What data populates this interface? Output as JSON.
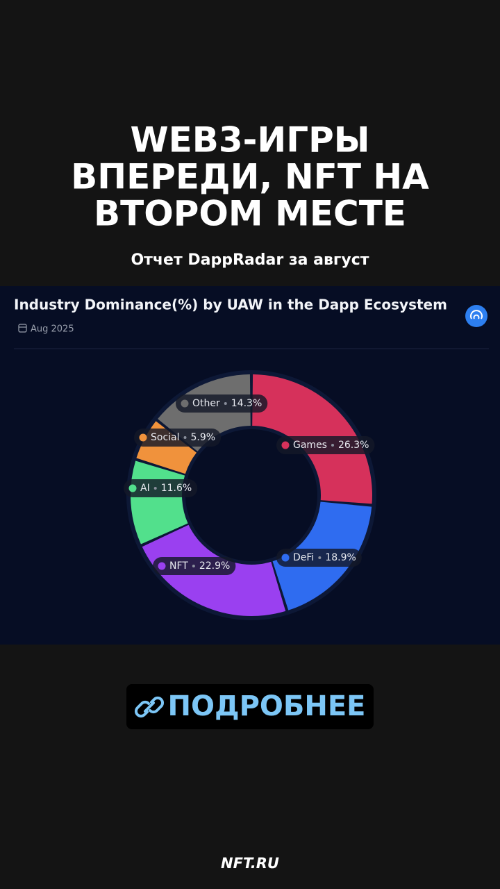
{
  "headline": [
    "WEB3-ИГРЫ",
    "ВПЕРЕДИ, NFT НА",
    "ВТОРОМ МЕСТЕ"
  ],
  "subtitle": "Отчет DappRadar за август",
  "chart_data": {
    "type": "pie",
    "donut": true,
    "title": "Industry Dominance(%) by UAW in the Dapp Ecosystem",
    "subtitle": "Aug 2025",
    "categories": [
      "Games",
      "DeFi",
      "NFT",
      "AI",
      "Social",
      "Other"
    ],
    "values": [
      26.3,
      18.9,
      22.9,
      11.6,
      5.9,
      14.3
    ],
    "value_labels": [
      "26.3%",
      "18.9%",
      "22.9%",
      "11.6%",
      "5.9%",
      "14.3%"
    ],
    "colors": [
      "#d6315b",
      "#2f6cf0",
      "#9a40f0",
      "#52e08c",
      "#f0923c",
      "#6e6e6e"
    ]
  },
  "button": "ПОДРОБНЕЕ",
  "footer": "NFT.RU"
}
